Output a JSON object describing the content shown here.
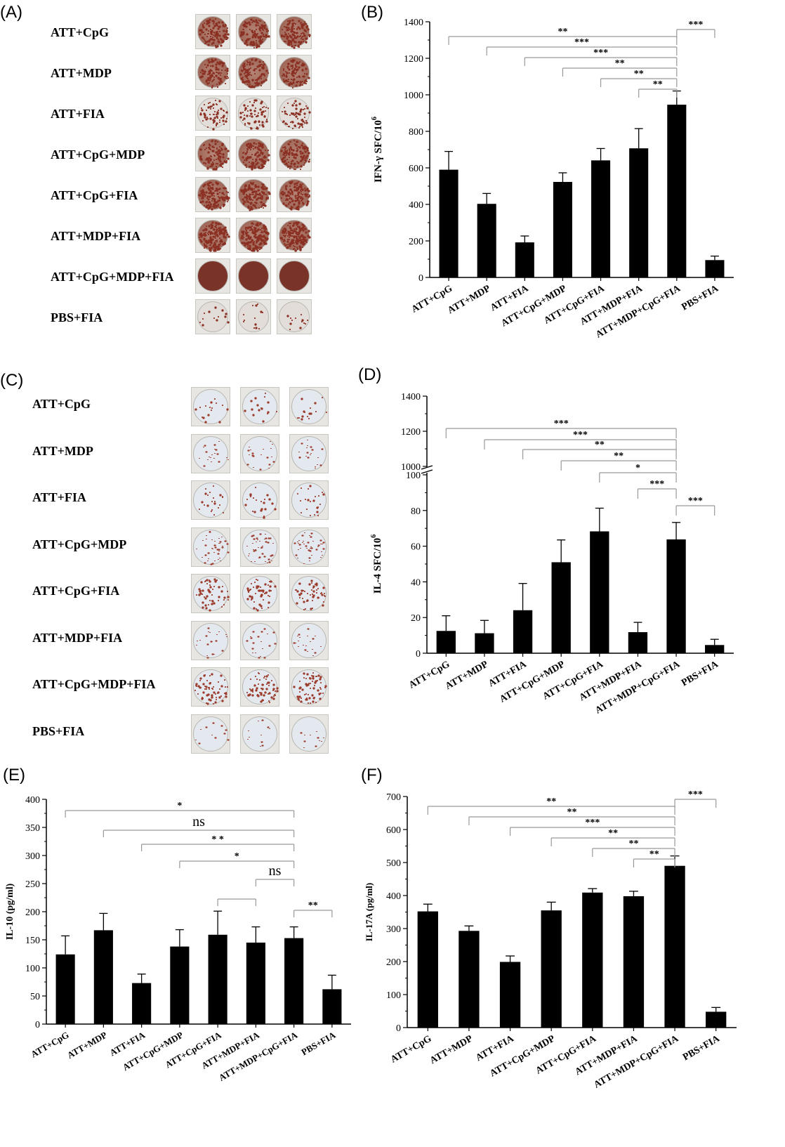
{
  "panels": {
    "A": "(A)",
    "B": "(B)",
    "C": "(C)",
    "D": "(D)",
    "E": "(E)",
    "F": "(F)"
  },
  "elispot_A": {
    "rows": [
      {
        "label": "ATT+CpG",
        "density": 0.55
      },
      {
        "label": "ATT+MDP",
        "density": 0.45
      },
      {
        "label": "ATT+FIA",
        "density": 0.25
      },
      {
        "label": "ATT+CpG+MDP",
        "density": 0.5
      },
      {
        "label": "ATT+CpG+FIA",
        "density": 0.6
      },
      {
        "label": "ATT+MDP+FIA",
        "density": 0.75
      },
      {
        "label": "ATT+CpG+MDP+FIA",
        "density": 1.0
      },
      {
        "label": "PBS+FIA",
        "density": 0.02
      }
    ],
    "colors": {
      "spot": "#8a2f22",
      "full": "#7a3328",
      "background": "#e2ddd8"
    }
  },
  "elispot_C": {
    "rows": [
      {
        "label": "ATT+CpG",
        "density": 0.03
      },
      {
        "label": "ATT+MDP",
        "density": 0.05
      },
      {
        "label": "ATT+FIA",
        "density": 0.06
      },
      {
        "label": "ATT+CpG+MDP",
        "density": 0.15
      },
      {
        "label": "ATT+CpG+FIA",
        "density": 0.2
      },
      {
        "label": "ATT+MDP+FIA",
        "density": 0.05
      },
      {
        "label": "ATT+CpG+MDP+FIA",
        "density": 0.25
      },
      {
        "label": "PBS+FIA",
        "density": 0.01
      }
    ],
    "colors": {
      "spot": "#9c3b2c",
      "full": "#7a3328",
      "background": "#e3e9ee"
    }
  },
  "chart_data": [
    {
      "id": "B",
      "type": "bar",
      "categories": [
        "ATT+CpG",
        "ATT+MDP",
        "ATT+FIA",
        "ATT+CpG+MDP",
        "ATT+CpG+FIA",
        "ATT+MDP+FIA",
        "ATT+MDP+CpG+FIA",
        "PBS+FIA"
      ],
      "values": [
        590,
        403,
        192,
        523,
        641,
        707,
        946,
        95
      ],
      "errors": [
        100,
        57,
        35,
        50,
        65,
        108,
        75,
        22
      ],
      "ylabel": "IFN-γ  SFC/10",
      "ylabel_sup": "6",
      "ylim": [
        0,
        1400
      ],
      "yticks": [
        0,
        200,
        400,
        600,
        800,
        1000,
        1200,
        1400
      ],
      "brackets": [
        {
          "from": 0,
          "to": 6,
          "label": "**"
        },
        {
          "from": 1,
          "to": 6,
          "label": "***"
        },
        {
          "from": 2,
          "to": 6,
          "label": "***"
        },
        {
          "from": 3,
          "to": 6,
          "label": "**"
        },
        {
          "from": 4,
          "to": 6,
          "label": "**"
        },
        {
          "from": 5,
          "to": 6,
          "label": "**"
        },
        {
          "from": 6,
          "to": 7,
          "label": "***"
        }
      ]
    },
    {
      "id": "D",
      "type": "bar",
      "axis_break": true,
      "categories": [
        "ATT+CpG",
        "ATT+MDP",
        "ATT+FIA",
        "ATT+CpG+MDP",
        "ATT+CpG+FIA",
        "ATT+MDP+FIA",
        "ATT+MDP+CpG+FIA",
        "PBS+FIA"
      ],
      "values": [
        12.5,
        11.2,
        24.1,
        51,
        68.3,
        11.8,
        63.8,
        4.6
      ],
      "errors": [
        8.5,
        7.2,
        15,
        12.5,
        13,
        5.5,
        9.5,
        3.2
      ],
      "ylabel": "IL-4 SFC/10",
      "ylabel_sup": "6",
      "ylim": [
        0,
        100
      ],
      "yticks": [
        0,
        20,
        40,
        60,
        80,
        100
      ],
      "upper_yticks": [
        1000,
        1200,
        1400
      ],
      "brackets": [
        {
          "from": 0,
          "to": 6,
          "label": "***"
        },
        {
          "from": 1,
          "to": 6,
          "label": "***"
        },
        {
          "from": 2,
          "to": 6,
          "label": "**"
        },
        {
          "from": 3,
          "to": 6,
          "label": "**"
        },
        {
          "from": 4,
          "to": 6,
          "label": "*"
        },
        {
          "from": 5,
          "to": 6,
          "label": "***"
        },
        {
          "from": 6,
          "to": 7,
          "label": "***"
        }
      ]
    },
    {
      "id": "E",
      "type": "bar",
      "categories": [
        "ATT+CpG",
        "ATT+MDP",
        "ATT+FIA",
        "ATT+CpG+MDP",
        "ATT+CpG+FIA",
        "ATT+MDP+FIA",
        "ATT+MDP+CpG+FIA",
        "PBS+FIA"
      ],
      "values": [
        124,
        167,
        73,
        138,
        159,
        145,
        153,
        62
      ],
      "errors": [
        33,
        30,
        16,
        30,
        42,
        28,
        20,
        25
      ],
      "ylabel": "IL-10 (pg/ml)",
      "ylim": [
        0,
        400
      ],
      "yticks": [
        0,
        50,
        100,
        150,
        200,
        250,
        300,
        350,
        400
      ],
      "brackets": [
        {
          "from": 0,
          "to": 6,
          "label": "*"
        },
        {
          "from": 1,
          "to": 6,
          "label": "ns"
        },
        {
          "from": 2,
          "to": 6,
          "label": "* *"
        },
        {
          "from": 3,
          "to": 6,
          "label": "*"
        },
        {
          "from": 5,
          "to": 6,
          "label": "ns"
        },
        {
          "from": 4,
          "to": 5,
          "label": ""
        },
        {
          "from": 6,
          "to": 7,
          "label": "**"
        }
      ]
    },
    {
      "id": "F",
      "type": "bar",
      "categories": [
        "ATT+CpG",
        "ATT+MDP",
        "ATT+FIA",
        "ATT+CpG+MDP",
        "ATT+CpG+FIA",
        "ATT+MDP+FIA",
        "ATT+MDP+CpG+FIA",
        "PBS+FIA"
      ],
      "values": [
        352,
        293,
        199,
        355,
        409,
        398,
        490,
        48
      ],
      "errors": [
        22,
        15,
        18,
        25,
        12,
        15,
        30,
        13
      ],
      "ylabel": "IL-17A (pg/ml)",
      "ylim": [
        0,
        700
      ],
      "yticks": [
        0,
        100,
        200,
        300,
        400,
        500,
        600,
        700
      ],
      "brackets": [
        {
          "from": 0,
          "to": 6,
          "label": "**"
        },
        {
          "from": 1,
          "to": 6,
          "label": "**"
        },
        {
          "from": 2,
          "to": 6,
          "label": "***"
        },
        {
          "from": 3,
          "to": 6,
          "label": "**"
        },
        {
          "from": 4,
          "to": 6,
          "label": "**"
        },
        {
          "from": 5,
          "to": 6,
          "label": "**"
        },
        {
          "from": 6,
          "to": 7,
          "label": "***"
        }
      ]
    }
  ]
}
